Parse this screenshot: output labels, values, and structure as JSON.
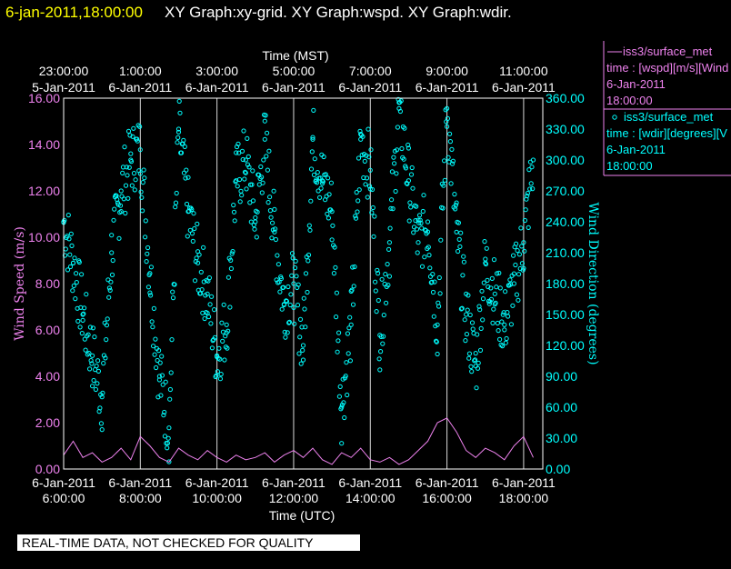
{
  "title": {
    "datetime": "6-jan-2011,18:00:00",
    "graphs": "XY Graph:xy-grid.  XY Graph:wspd.  XY Graph:wdir."
  },
  "banner": "REAL-TIME DATA, NOT CHECKED FOR QUALITY",
  "legend": {
    "wspd": {
      "line1": "iss3/surface_met",
      "line2": "time : [wspd][m/s][Wind",
      "line3": "6-Jan-2011",
      "line4": "18:00:00"
    },
    "wdir": {
      "line1": "iss3/surface_met",
      "line2": "time : [wdir][degrees][V",
      "line3": "6-Jan-2011",
      "line4": "18:00:00"
    }
  },
  "colors": {
    "wspd": "#ee82ee",
    "wdir": "#00ffff",
    "grid": "#ffffff",
    "banner_bg": "#ffffff"
  },
  "chart_data": {
    "type": "scatter",
    "title": "XY Graph:xy-grid.  XY Graph:wspd.  XY Graph:wdir.",
    "xlabel_bottom": "Time (UTC)",
    "xlabel_top": "Time (MST)",
    "ylabel_left": "Wind Speed (m/s)",
    "ylabel_right": "Wind Direction (degrees)",
    "xlim_hours_utc": [
      6.0,
      18.5
    ],
    "ylim_left": [
      0,
      16
    ],
    "ylim_right": [
      0,
      360
    ],
    "grid": "vertical lines every 2 hours",
    "legend_position": "right, outside plot",
    "bottom_ticks": [
      {
        "hour": 6,
        "date": "6-Jan-2011",
        "time": "6:00:00"
      },
      {
        "hour": 8,
        "date": "6-Jan-2011",
        "time": "8:00:00"
      },
      {
        "hour": 10,
        "date": "6-Jan-2011",
        "time": "10:00:00"
      },
      {
        "hour": 12,
        "date": "6-Jan-2011",
        "time": "12:00:00"
      },
      {
        "hour": 14,
        "date": "6-Jan-2011",
        "time": "14:00:00"
      },
      {
        "hour": 16,
        "date": "6-Jan-2011",
        "time": "16:00:00"
      },
      {
        "hour": 18,
        "date": "6-Jan-2011",
        "time": "18:00:00"
      }
    ],
    "top_ticks": [
      {
        "hour": 6,
        "date": "5-Jan-2011",
        "time": "23:00:00"
      },
      {
        "hour": 8,
        "date": "6-Jan-2011",
        "time": "1:00:00"
      },
      {
        "hour": 10,
        "date": "6-Jan-2011",
        "time": "3:00:00"
      },
      {
        "hour": 12,
        "date": "6-Jan-2011",
        "time": "5:00:00"
      },
      {
        "hour": 14,
        "date": "6-Jan-2011",
        "time": "7:00:00"
      },
      {
        "hour": 16,
        "date": "6-Jan-2011",
        "time": "9:00:00"
      },
      {
        "hour": 18,
        "date": "6-Jan-2011",
        "time": "11:00:00"
      }
    ],
    "left_ticks": [
      "0.00",
      "2.00",
      "4.00",
      "6.00",
      "8.00",
      "10.00",
      "12.00",
      "14.00",
      "16.00"
    ],
    "right_ticks": [
      "0.00",
      "30.00",
      "60.00",
      "90.00",
      "120.00",
      "150.00",
      "180.00",
      "210.00",
      "240.00",
      "270.00",
      "300.00",
      "330.00",
      "360.00"
    ],
    "series": [
      {
        "name": "iss3/surface_met time : [wspd][m/s]",
        "style": "line",
        "hour": [
          6.0,
          6.25,
          6.5,
          6.75,
          7.0,
          7.25,
          7.5,
          7.75,
          8.0,
          8.25,
          8.5,
          8.75,
          9.0,
          9.25,
          9.5,
          9.75,
          10.0,
          10.25,
          10.5,
          10.75,
          11.0,
          11.25,
          11.5,
          11.75,
          12.0,
          12.25,
          12.5,
          12.75,
          13.0,
          13.25,
          13.5,
          13.75,
          14.0,
          14.25,
          14.5,
          14.75,
          15.0,
          15.25,
          15.5,
          15.75,
          16.0,
          16.25,
          16.5,
          16.75,
          17.0,
          17.25,
          17.5,
          17.75,
          18.0,
          18.25
        ],
        "values": [
          0.6,
          1.2,
          0.5,
          0.7,
          0.3,
          0.5,
          0.9,
          0.4,
          1.4,
          1.0,
          0.5,
          0.3,
          0.9,
          0.6,
          0.4,
          0.8,
          0.5,
          0.3,
          0.6,
          0.4,
          0.5,
          0.7,
          0.3,
          0.6,
          0.8,
          0.5,
          0.9,
          0.4,
          0.2,
          0.7,
          0.5,
          0.9,
          0.4,
          0.3,
          0.5,
          0.2,
          0.4,
          0.8,
          1.2,
          2.0,
          2.2,
          1.6,
          0.8,
          0.5,
          0.9,
          0.7,
          0.4,
          1.0,
          1.4,
          0.5
        ]
      },
      {
        "name": "iss3/surface_met time : [wdir][degrees]",
        "style": "markers",
        "hour": [
          6.0,
          6.25,
          6.5,
          6.75,
          7.0,
          7.25,
          7.5,
          7.75,
          8.0,
          8.25,
          8.5,
          8.75,
          9.0,
          9.25,
          9.5,
          9.75,
          10.0,
          10.25,
          10.5,
          10.75,
          11.0,
          11.25,
          11.5,
          11.75,
          12.0,
          12.25,
          12.5,
          12.75,
          13.0,
          13.25,
          13.5,
          13.75,
          14.0,
          14.25,
          14.5,
          14.75,
          15.0,
          15.25,
          15.5,
          15.75,
          16.0,
          16.25,
          16.5,
          16.75,
          17.0,
          17.25,
          17.5,
          17.75,
          18.0,
          18.25
        ],
        "values": [
          240,
          200,
          150,
          110,
          70,
          210,
          270,
          300,
          310,
          190,
          90,
          40,
          330,
          250,
          200,
          170,
          110,
          140,
          280,
          300,
          240,
          320,
          230,
          160,
          180,
          120,
          320,
          280,
          250,
          60,
          140,
          320,
          290,
          130,
          220,
          350,
          280,
          220,
          240,
          140,
          350,
          230,
          150,
          100,
          200,
          170,
          140,
          180,
          220,
          300
        ]
      }
    ]
  }
}
